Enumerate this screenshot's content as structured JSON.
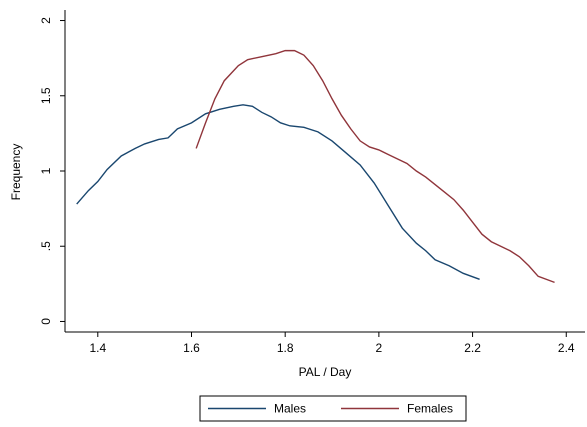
{
  "chart_data": {
    "type": "line",
    "x_label": "PAL / Day",
    "y_label": "Frequency",
    "xlim": [
      1.33,
      2.44
    ],
    "ylim": [
      -0.07,
      2.07
    ],
    "xticks": [
      1.4,
      1.6,
      1.8,
      2,
      2.2,
      2.4
    ],
    "yticks": [
      0,
      {
        "value": 0.5,
        "label": ".5"
      },
      1,
      1.5,
      2
    ],
    "grid": false,
    "legend": "bottom",
    "series": [
      {
        "name": "Males",
        "color": "#1a476f",
        "x": [
          1.355,
          1.38,
          1.4,
          1.42,
          1.45,
          1.48,
          1.5,
          1.53,
          1.55,
          1.57,
          1.6,
          1.63,
          1.66,
          1.69,
          1.71,
          1.73,
          1.75,
          1.77,
          1.79,
          1.81,
          1.84,
          1.87,
          1.9,
          1.93,
          1.96,
          1.99,
          2.02,
          2.05,
          2.08,
          2.1,
          2.12,
          2.15,
          2.18,
          2.215
        ],
        "values": [
          0.78,
          0.87,
          0.93,
          1.01,
          1.1,
          1.15,
          1.18,
          1.21,
          1.22,
          1.28,
          1.32,
          1.38,
          1.41,
          1.43,
          1.44,
          1.43,
          1.39,
          1.36,
          1.32,
          1.3,
          1.29,
          1.26,
          1.2,
          1.12,
          1.04,
          0.92,
          0.77,
          0.62,
          0.52,
          0.47,
          0.41,
          0.37,
          0.32,
          0.28
        ]
      },
      {
        "name": "Females",
        "color": "#90353b",
        "x": [
          1.61,
          1.63,
          1.65,
          1.67,
          1.7,
          1.72,
          1.75,
          1.78,
          1.8,
          1.82,
          1.84,
          1.86,
          1.88,
          1.9,
          1.92,
          1.94,
          1.96,
          1.98,
          2.0,
          2.02,
          2.04,
          2.06,
          2.08,
          2.1,
          2.12,
          2.14,
          2.16,
          2.18,
          2.2,
          2.22,
          2.24,
          2.26,
          2.28,
          2.3,
          2.32,
          2.34,
          2.375
        ],
        "values": [
          1.15,
          1.32,
          1.48,
          1.6,
          1.7,
          1.74,
          1.76,
          1.78,
          1.8,
          1.8,
          1.77,
          1.7,
          1.6,
          1.48,
          1.37,
          1.28,
          1.2,
          1.16,
          1.14,
          1.11,
          1.08,
          1.05,
          1.0,
          0.96,
          0.91,
          0.86,
          0.81,
          0.74,
          0.66,
          0.58,
          0.53,
          0.5,
          0.47,
          0.43,
          0.37,
          0.3,
          0.26
        ]
      }
    ]
  }
}
